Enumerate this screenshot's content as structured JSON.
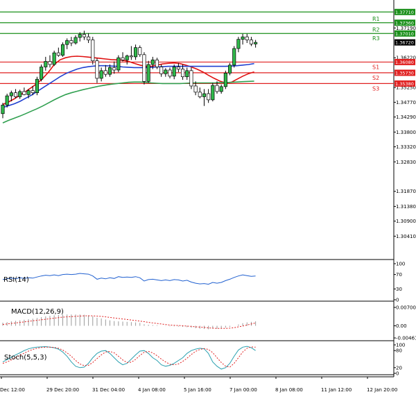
{
  "chart_data": {
    "type": "candlestick",
    "price_axis": {
      "ylim": [
        1.2965,
        1.3801
      ],
      "ticks": [
        {
          "label": "1.37190",
          "value": 1.3719
        },
        {
          "label": "1.36220",
          "value": 1.3622
        },
        {
          "label": "1.35250",
          "value": 1.3525
        },
        {
          "label": "1.34770",
          "value": 1.3477
        },
        {
          "label": "1.34290",
          "value": 1.3429
        },
        {
          "label": "1.33800",
          "value": 1.338
        },
        {
          "label": "1.33320",
          "value": 1.3332
        },
        {
          "label": "1.32830",
          "value": 1.3283
        },
        {
          "label": "1.31870",
          "value": 1.3187
        },
        {
          "label": "1.31380",
          "value": 1.3138
        },
        {
          "label": "1.30900",
          "value": 1.309
        },
        {
          "label": "1.30410",
          "value": 1.3041
        }
      ]
    },
    "levels": [
      {
        "name": "",
        "label": "1.37710",
        "value": 1.3771,
        "color": "#1a8f1a",
        "side": "resistance"
      },
      {
        "name": "R1",
        "label": "1.37360",
        "value": 1.3736,
        "color": "#1a8f1a",
        "side": "resistance"
      },
      {
        "name": "R2",
        "label": "1.37010",
        "value": 1.3701,
        "color": "#1a8f1a",
        "side": "resistance"
      },
      {
        "name": "R3",
        "label": "",
        "value": 1.3672,
        "color": "#1a8f1a",
        "side": "resistance",
        "line": false
      },
      {
        "name": "S1",
        "label": "1.36080",
        "value": 1.3608,
        "color": "#e02020",
        "side": "support"
      },
      {
        "name": "S2",
        "label": "1.35730",
        "value": 1.3573,
        "color": "#e02020",
        "side": "support"
      },
      {
        "name": "S3",
        "label": "1.35380",
        "value": 1.3538,
        "color": "#e02020",
        "side": "support"
      }
    ],
    "current_price": {
      "label": "1.36720",
      "value": 1.3672
    },
    "x_labels": [
      "Dec 12:00",
      "29 Dec 20:00",
      "31 Dec 04:00",
      "4 Jan 08:00",
      "5 Jan 16:00",
      "7 Jan 00:00",
      "8 Jan 08:00",
      "11 Jan 12:00",
      "12 Jan 20:00"
    ],
    "candles": [
      {
        "o": 1.344,
        "h": 1.3475,
        "l": 1.3425,
        "c": 1.3468
      },
      {
        "o": 1.3468,
        "h": 1.3505,
        "l": 1.346,
        "c": 1.3498
      },
      {
        "o": 1.3498,
        "h": 1.3515,
        "l": 1.348,
        "c": 1.3508
      },
      {
        "o": 1.3508,
        "h": 1.352,
        "l": 1.349,
        "c": 1.3495
      },
      {
        "o": 1.3495,
        "h": 1.3518,
        "l": 1.3488,
        "c": 1.3512
      },
      {
        "o": 1.3512,
        "h": 1.3525,
        "l": 1.35,
        "c": 1.3502
      },
      {
        "o": 1.3502,
        "h": 1.352,
        "l": 1.349,
        "c": 1.3515
      },
      {
        "o": 1.3515,
        "h": 1.353,
        "l": 1.35,
        "c": 1.3508
      },
      {
        "o": 1.3508,
        "h": 1.356,
        "l": 1.35,
        "c": 1.3552
      },
      {
        "o": 1.3552,
        "h": 1.36,
        "l": 1.3545,
        "c": 1.3592
      },
      {
        "o": 1.3592,
        "h": 1.3625,
        "l": 1.358,
        "c": 1.361
      },
      {
        "o": 1.361,
        "h": 1.363,
        "l": 1.359,
        "c": 1.36
      },
      {
        "o": 1.36,
        "h": 1.3645,
        "l": 1.3595,
        "c": 1.3638
      },
      {
        "o": 1.3638,
        "h": 1.3655,
        "l": 1.3625,
        "c": 1.363
      },
      {
        "o": 1.363,
        "h": 1.3672,
        "l": 1.3625,
        "c": 1.3665
      },
      {
        "o": 1.3665,
        "h": 1.3685,
        "l": 1.365,
        "c": 1.3678
      },
      {
        "o": 1.3678,
        "h": 1.369,
        "l": 1.366,
        "c": 1.367
      },
      {
        "o": 1.367,
        "h": 1.3695,
        "l": 1.3665,
        "c": 1.3688
      },
      {
        "o": 1.3688,
        "h": 1.3705,
        "l": 1.3675,
        "c": 1.3698
      },
      {
        "o": 1.3698,
        "h": 1.371,
        "l": 1.368,
        "c": 1.369
      },
      {
        "o": 1.369,
        "h": 1.3702,
        "l": 1.367,
        "c": 1.368
      },
      {
        "o": 1.368,
        "h": 1.369,
        "l": 1.36,
        "c": 1.3612
      },
      {
        "o": 1.3612,
        "h": 1.362,
        "l": 1.354,
        "c": 1.3555
      },
      {
        "o": 1.3555,
        "h": 1.359,
        "l": 1.3545,
        "c": 1.358
      },
      {
        "o": 1.358,
        "h": 1.3598,
        "l": 1.356,
        "c": 1.3568
      },
      {
        "o": 1.3568,
        "h": 1.36,
        "l": 1.356,
        "c": 1.359
      },
      {
        "o": 1.359,
        "h": 1.361,
        "l": 1.357,
        "c": 1.3582
      },
      {
        "o": 1.3582,
        "h": 1.363,
        "l": 1.3575,
        "c": 1.3622
      },
      {
        "o": 1.3622,
        "h": 1.364,
        "l": 1.361,
        "c": 1.3615
      },
      {
        "o": 1.3615,
        "h": 1.3632,
        "l": 1.36,
        "c": 1.3628
      },
      {
        "o": 1.3628,
        "h": 1.366,
        "l": 1.3615,
        "c": 1.3625
      },
      {
        "o": 1.3625,
        "h": 1.3665,
        "l": 1.3615,
        "c": 1.3655
      },
      {
        "o": 1.3655,
        "h": 1.3662,
        "l": 1.3625,
        "c": 1.3632
      },
      {
        "o": 1.3632,
        "h": 1.364,
        "l": 1.3535,
        "c": 1.3545
      },
      {
        "o": 1.3545,
        "h": 1.3612,
        "l": 1.354,
        "c": 1.36
      },
      {
        "o": 1.36,
        "h": 1.3625,
        "l": 1.3585,
        "c": 1.3615
      },
      {
        "o": 1.3615,
        "h": 1.3622,
        "l": 1.3585,
        "c": 1.3592
      },
      {
        "o": 1.3592,
        "h": 1.36,
        "l": 1.356,
        "c": 1.357
      },
      {
        "o": 1.357,
        "h": 1.3588,
        "l": 1.356,
        "c": 1.3582
      },
      {
        "o": 1.3582,
        "h": 1.359,
        "l": 1.3555,
        "c": 1.3562
      },
      {
        "o": 1.3562,
        "h": 1.36,
        "l": 1.3552,
        "c": 1.3592
      },
      {
        "o": 1.3592,
        "h": 1.3605,
        "l": 1.3575,
        "c": 1.3585
      },
      {
        "o": 1.3585,
        "h": 1.36,
        "l": 1.355,
        "c": 1.356
      },
      {
        "o": 1.356,
        "h": 1.359,
        "l": 1.355,
        "c": 1.358
      },
      {
        "o": 1.358,
        "h": 1.359,
        "l": 1.352,
        "c": 1.353
      },
      {
        "o": 1.353,
        "h": 1.3545,
        "l": 1.35,
        "c": 1.351
      },
      {
        "o": 1.351,
        "h": 1.3525,
        "l": 1.349,
        "c": 1.3495
      },
      {
        "o": 1.3495,
        "h": 1.352,
        "l": 1.3465,
        "c": 1.3505
      },
      {
        "o": 1.3505,
        "h": 1.352,
        "l": 1.3475,
        "c": 1.3485
      },
      {
        "o": 1.3485,
        "h": 1.354,
        "l": 1.348,
        "c": 1.3532
      },
      {
        "o": 1.3532,
        "h": 1.3545,
        "l": 1.3505,
        "c": 1.3512
      },
      {
        "o": 1.3512,
        "h": 1.3535,
        "l": 1.3505,
        "c": 1.3528
      },
      {
        "o": 1.3528,
        "h": 1.358,
        "l": 1.352,
        "c": 1.3572
      },
      {
        "o": 1.3572,
        "h": 1.3605,
        "l": 1.3565,
        "c": 1.3598
      },
      {
        "o": 1.3598,
        "h": 1.366,
        "l": 1.359,
        "c": 1.3652
      },
      {
        "o": 1.3652,
        "h": 1.369,
        "l": 1.364,
        "c": 1.3682
      },
      {
        "o": 1.3682,
        "h": 1.37,
        "l": 1.3665,
        "c": 1.369
      },
      {
        "o": 1.369,
        "h": 1.37,
        "l": 1.367,
        "c": 1.368
      },
      {
        "o": 1.368,
        "h": 1.369,
        "l": 1.366,
        "c": 1.3667
      },
      {
        "o": 1.3667,
        "h": 1.368,
        "l": 1.3655,
        "c": 1.3672
      }
    ],
    "moving_averages": [
      {
        "color": "#e01010",
        "values": [
          1.347,
          1.3478,
          1.3488,
          1.35,
          1.3512,
          1.3525,
          1.3538,
          1.3555,
          1.3575,
          1.36,
          1.3615,
          1.3622,
          1.3626,
          1.3627,
          1.3626,
          1.3624,
          1.3622,
          1.362,
          1.3618,
          1.3616,
          1.3615,
          1.3614,
          1.361,
          1.3604,
          1.3598,
          1.3594,
          1.3594,
          1.3598,
          1.3602,
          1.3604,
          1.3605,
          1.3603,
          1.3598,
          1.3592,
          1.3585,
          1.3576,
          1.3565,
          1.3555,
          1.3546,
          1.354,
          1.3542,
          1.3552,
          1.3562,
          1.357,
          1.3576
        ]
      },
      {
        "color": "#2040d0",
        "values": [
          1.346,
          1.3466,
          1.3472,
          1.348,
          1.349,
          1.35,
          1.3512,
          1.3524,
          1.3536,
          1.3548,
          1.356,
          1.357,
          1.3578,
          1.3585,
          1.359,
          1.3593,
          1.3595,
          1.3596,
          1.3596,
          1.3595,
          1.3594,
          1.3592,
          1.3591,
          1.359,
          1.359,
          1.359,
          1.3591,
          1.3592,
          1.3593,
          1.3594,
          1.3594,
          1.3594,
          1.3594,
          1.3594,
          1.3594,
          1.3594,
          1.3594,
          1.3594,
          1.3594,
          1.3594,
          1.3595,
          1.3596,
          1.3598,
          1.36,
          1.3603
        ]
      },
      {
        "color": "#30a050",
        "values": [
          1.341,
          1.3418,
          1.3425,
          1.3432,
          1.344,
          1.3448,
          1.3456,
          1.3465,
          1.3475,
          1.3485,
          1.3494,
          1.3502,
          1.3508,
          1.3513,
          1.3518,
          1.3522,
          1.3526,
          1.353,
          1.3533,
          1.3536,
          1.3538,
          1.354,
          1.3542,
          1.3543,
          1.3543,
          1.3542,
          1.354,
          1.3539,
          1.3538,
          1.3538,
          1.3538,
          1.3538,
          1.3539,
          1.354,
          1.354,
          1.354,
          1.354,
          1.354,
          1.3541,
          1.3541,
          1.3542,
          1.3543,
          1.3544,
          1.3545,
          1.3546
        ]
      }
    ],
    "rsi": {
      "title": "RSI(14)",
      "ylim": [
        0,
        100
      ],
      "ticks": [
        {
          "label": "100",
          "value": 100
        },
        {
          "label": "70",
          "value": 70
        },
        {
          "label": "30",
          "value": 30
        },
        {
          "label": "0",
          "value": 0
        }
      ],
      "color": "#2060d0",
      "values": [
        56,
        58,
        60,
        58,
        61,
        59,
        61,
        60,
        63,
        66,
        68,
        67,
        69,
        67,
        70,
        71,
        70,
        71,
        73,
        72,
        71,
        66,
        57,
        60,
        58,
        61,
        59,
        64,
        62,
        63,
        62,
        64,
        61,
        52,
        56,
        57,
        55,
        53,
        55,
        53,
        56,
        55,
        52,
        54,
        49,
        46,
        44,
        45,
        43,
        48,
        46,
        48,
        53,
        57,
        62,
        66,
        69,
        67,
        65,
        66
      ]
    },
    "macd": {
      "title": "MACD(12,26,9)",
      "ylim": [
        -0.004617,
        0.007005
      ],
      "ticks": [
        {
          "label": "0.007005",
          "value": 0.007005
        },
        {
          "label": "0.00",
          "value": 0
        },
        {
          "label": "-0.004617",
          "value": -0.004617
        }
      ],
      "histogram": [
        0.0012,
        0.0014,
        0.0017,
        0.0019,
        0.0021,
        0.0023,
        0.0025,
        0.0027,
        0.003,
        0.0033,
        0.0036,
        0.0038,
        0.004,
        0.0041,
        0.0042,
        0.0043,
        0.0043,
        0.0043,
        0.0043,
        0.0042,
        0.004,
        0.0036,
        0.0031,
        0.0028,
        0.0024,
        0.0021,
        0.0018,
        0.0017,
        0.0016,
        0.0015,
        0.0014,
        0.0013,
        0.0011,
        0.0006,
        0.0004,
        0.0003,
        0.0002,
        0.0,
        -0.0001,
        -0.0002,
        -0.0002,
        -0.0003,
        -0.0004,
        -0.0005,
        -0.0007,
        -0.0009,
        -0.0011,
        -0.0012,
        -0.0013,
        -0.0011,
        -0.0011,
        -0.001,
        -0.0007,
        -0.0004,
        0.0,
        0.0005,
        0.001,
        0.0013,
        0.0015,
        0.0017
      ],
      "signal": [
        0.0005,
        0.0007,
        0.0009,
        0.0011,
        0.0013,
        0.0015,
        0.0017,
        0.0019,
        0.0021,
        0.0023,
        0.0025,
        0.0027,
        0.0029,
        0.0031,
        0.0033,
        0.0034,
        0.0035,
        0.0036,
        0.0037,
        0.0038,
        0.0038,
        0.0038,
        0.0037,
        0.0036,
        0.0034,
        0.0032,
        0.003,
        0.0028,
        0.0026,
        0.0024,
        0.0022,
        0.002,
        0.0018,
        0.0016,
        0.0013,
        0.0011,
        0.0009,
        0.0007,
        0.0005,
        0.0003,
        0.0002,
        0.0001,
        0.0,
        -0.0001,
        -0.0002,
        -0.0004,
        -0.0005,
        -0.0006,
        -0.0008,
        -0.0009,
        -0.001,
        -0.001,
        -0.001,
        -0.0009,
        -0.0007,
        -0.0004,
        -0.0001,
        0.0003,
        0.0007,
        0.0011
      ],
      "hist_color": "#9a9a9a",
      "signal_color": "#e02020"
    },
    "stoch": {
      "title": "Stoch(5,5,3)",
      "ylim": [
        0,
        100
      ],
      "ticks": [
        {
          "label": "100",
          "value": 100
        },
        {
          "label": "80",
          "value": 80
        },
        {
          "label": "20",
          "value": 20
        },
        {
          "label": "0",
          "value": 0
        }
      ],
      "main": [
        40,
        48,
        57,
        65,
        72,
        80,
        86,
        90,
        92,
        93,
        94,
        92,
        90,
        85,
        75,
        60,
        40,
        25,
        20,
        22,
        35,
        55,
        70,
        78,
        80,
        70,
        55,
        40,
        30,
        35,
        50,
        65,
        78,
        80,
        70,
        55,
        45,
        30,
        25,
        28,
        35,
        45,
        55,
        70,
        80,
        85,
        88,
        86,
        70,
        40,
        25,
        15,
        20,
        35,
        60,
        82,
        92,
        95,
        90,
        80
      ],
      "signal": [
        35,
        40,
        47,
        55,
        63,
        71,
        78,
        84,
        88,
        91,
        92,
        92,
        91,
        88,
        82,
        72,
        60,
        45,
        33,
        27,
        28,
        38,
        52,
        65,
        75,
        77,
        72,
        60,
        47,
        38,
        39,
        49,
        63,
        74,
        77,
        72,
        62,
        50,
        40,
        32,
        30,
        33,
        42,
        53,
        66,
        77,
        84,
        87,
        84,
        73,
        55,
        38,
        25,
        22,
        35,
        55,
        75,
        88,
        93,
        92
      ],
      "main_color": "#2aa0b0",
      "signal_color": "#e02020"
    }
  }
}
